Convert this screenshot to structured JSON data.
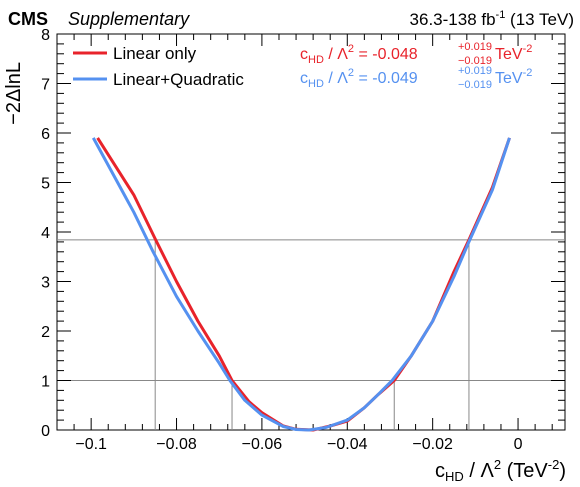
{
  "header": {
    "experiment": "CMS",
    "tag": "Supplementary",
    "lumi_prefix": "36.3-138 fb",
    "lumi_exp": "-1",
    "lumi_suffix": " (13 TeV)"
  },
  "chart_data": {
    "type": "line",
    "title": "",
    "xlabel_main": "c",
    "xlabel_sub": "HD",
    "xlabel_rest": " / Λ",
    "xlabel_sq": "2",
    "xlabel_unit": " (TeV",
    "xlabel_unit_exp": "-2",
    "xlabel_close": ")",
    "ylabel": "−2ΔlnL",
    "xlim": [
      -0.108,
      0.011
    ],
    "ylim": [
      0,
      8
    ],
    "xticks": [
      -0.1,
      -0.08,
      -0.06,
      -0.04,
      -0.02,
      0
    ],
    "xtick_labels": [
      "−0.1",
      "−0.08",
      "−0.06",
      "−0.04",
      "−0.02",
      "0"
    ],
    "yticks": [
      0,
      1,
      2,
      3,
      4,
      5,
      6,
      7,
      8
    ],
    "ytick_labels": [
      "0",
      "1",
      "2",
      "3",
      "4",
      "5",
      "6",
      "7",
      "8"
    ],
    "reference_lines": [
      1,
      3.84
    ],
    "interval_markers": {
      "one_sigma": [
        -0.067,
        -0.029
      ],
      "two_sigma": [
        -0.085,
        -0.0115
      ]
    },
    "legend": {
      "placement": "top-left"
    },
    "series": [
      {
        "name": "Linear only",
        "color": "#e8232b",
        "x": [
          -0.0985,
          -0.09,
          -0.085,
          -0.08,
          -0.075,
          -0.07,
          -0.067,
          -0.063,
          -0.06,
          -0.055,
          -0.052,
          -0.048,
          -0.044,
          -0.04,
          -0.036,
          -0.033,
          -0.029,
          -0.025,
          -0.02,
          -0.015,
          -0.0115,
          -0.006,
          -0.002
        ],
        "y": [
          5.9,
          4.75,
          3.86,
          3.0,
          2.2,
          1.5,
          1.0,
          0.57,
          0.35,
          0.08,
          0.015,
          0.0,
          0.08,
          0.18,
          0.45,
          0.7,
          1.0,
          1.5,
          2.2,
          3.2,
          3.84,
          4.9,
          5.9
        ]
      },
      {
        "name": "Linear+Quadratic",
        "color": "#5591f0",
        "x": [
          -0.0995,
          -0.09,
          -0.0855,
          -0.08,
          -0.075,
          -0.07,
          -0.0675,
          -0.064,
          -0.06,
          -0.055,
          -0.052,
          -0.049,
          -0.045,
          -0.04,
          -0.036,
          -0.033,
          -0.0295,
          -0.025,
          -0.02,
          -0.015,
          -0.0115,
          -0.006,
          -0.002
        ],
        "y": [
          5.9,
          4.4,
          3.6,
          2.7,
          2.0,
          1.35,
          1.0,
          0.6,
          0.3,
          0.07,
          0.01,
          0.0,
          0.05,
          0.2,
          0.45,
          0.7,
          1.0,
          1.5,
          2.2,
          3.1,
          3.8,
          4.85,
          5.9
        ]
      }
    ],
    "results": [
      {
        "coef": "c",
        "coef_sub": "HD",
        "sep": " / Λ",
        "sq": "2",
        "eq": " = -0.048",
        "up": "+0.019",
        "down": "−0.019",
        "unit": " TeV",
        "unit_exp": "-2",
        "color": "#e8232b"
      },
      {
        "coef": "c",
        "coef_sub": "HD",
        "sep": " / Λ",
        "sq": "2",
        "eq": " = -0.049",
        "up": "+0.019",
        "down": "−0.019",
        "unit": " TeV",
        "unit_exp": "-2",
        "color": "#5591f0"
      }
    ]
  }
}
